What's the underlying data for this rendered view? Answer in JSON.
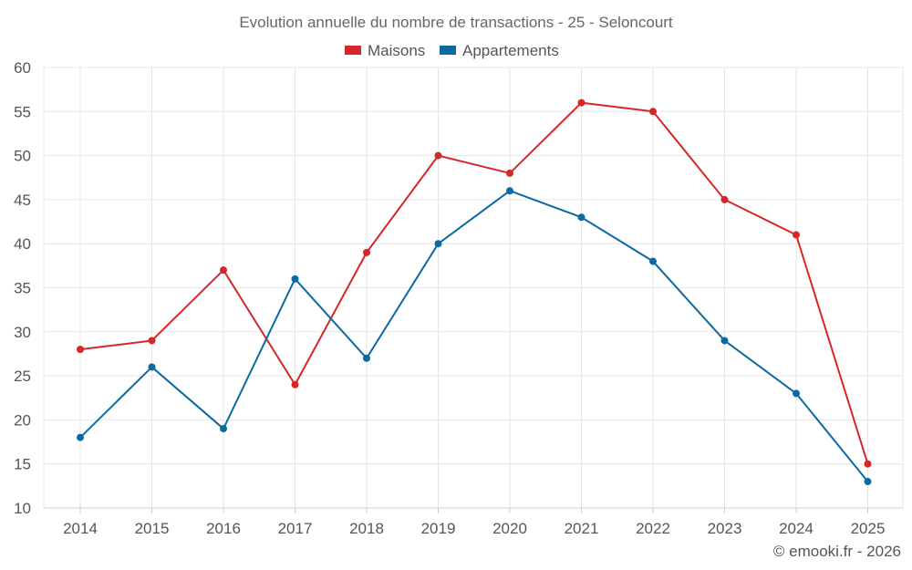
{
  "chart_data": {
    "type": "line",
    "title": "Evolution annuelle du nombre de transactions - 25 - Seloncourt",
    "categories": [
      "2014",
      "2015",
      "2016",
      "2017",
      "2018",
      "2019",
      "2020",
      "2021",
      "2022",
      "2023",
      "2024",
      "2025"
    ],
    "series": [
      {
        "name": "Maisons",
        "color": "#d62728",
        "values": [
          28,
          29,
          37,
          24,
          39,
          50,
          48,
          56,
          55,
          45,
          41,
          15
        ]
      },
      {
        "name": "Appartements",
        "color": "#0b6aa2",
        "values": [
          18,
          26,
          19,
          36,
          27,
          40,
          46,
          43,
          38,
          29,
          23,
          13
        ]
      }
    ],
    "ylim": [
      10,
      60
    ],
    "yticks": [
      "10",
      "15",
      "20",
      "25",
      "30",
      "35",
      "40",
      "45",
      "50",
      "55",
      "60"
    ],
    "grid": true,
    "legend": "top-center",
    "xlabel": "",
    "ylabel": ""
  },
  "credit": "© emooki.fr - 2026"
}
